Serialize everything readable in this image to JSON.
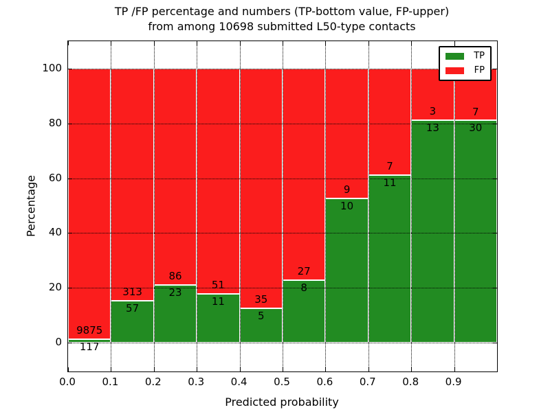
{
  "title": {
    "line1": "TP /FP percentage and numbers (TP-bottom value, FP-upper)",
    "line2": "from among 10698 submitted L50-type contacts"
  },
  "legend": {
    "tp": "TP",
    "fp": "FP"
  },
  "axes": {
    "xlabel": "Predicted probability",
    "ylabel": "Percentage",
    "x_tick_labels": [
      "0.0",
      "0.1",
      "0.2",
      "0.3",
      "0.4",
      "0.5",
      "0.6",
      "0.7",
      "0.8",
      "0.9"
    ],
    "y_tick_labels": [
      "0",
      "20",
      "40",
      "60",
      "80",
      "100"
    ],
    "y_tick_values": [
      0,
      20,
      40,
      60,
      80,
      100
    ]
  },
  "colors": {
    "tp": "#228b22",
    "fp": "#fb1d1d"
  },
  "chart_data": {
    "type": "bar",
    "stacked": true,
    "normalized": "each bar scaled to 100%",
    "title": "TP /FP percentage and numbers (TP-bottom value, FP-upper) from among 10698 submitted L50-type contacts",
    "xlabel": "Predicted probability",
    "ylabel": "Percentage",
    "bin_starts": [
      0.0,
      0.1,
      0.2,
      0.3,
      0.4,
      0.5,
      0.6,
      0.7,
      0.8,
      0.9
    ],
    "bin_width": 0.1,
    "series": [
      {
        "name": "TP",
        "color": "#228b22",
        "counts": [
          117,
          57,
          23,
          11,
          5,
          8,
          10,
          11,
          13,
          30
        ]
      },
      {
        "name": "FP",
        "color": "#fb1d1d",
        "counts": [
          9875,
          313,
          86,
          51,
          35,
          27,
          9,
          7,
          3,
          7
        ]
      }
    ],
    "tp_percent": [
      1.17,
      15.41,
      21.1,
      17.74,
      12.5,
      22.86,
      52.63,
      61.11,
      81.25,
      81.08
    ],
    "total_contacts": 10698,
    "xlim": [
      0.0,
      1.0
    ],
    "ylim": [
      -10.5,
      110
    ],
    "grid": true,
    "grid_style": "dotted, drawn above bars",
    "bar_edge_color": "#ffffff",
    "legend_position": "upper right"
  }
}
